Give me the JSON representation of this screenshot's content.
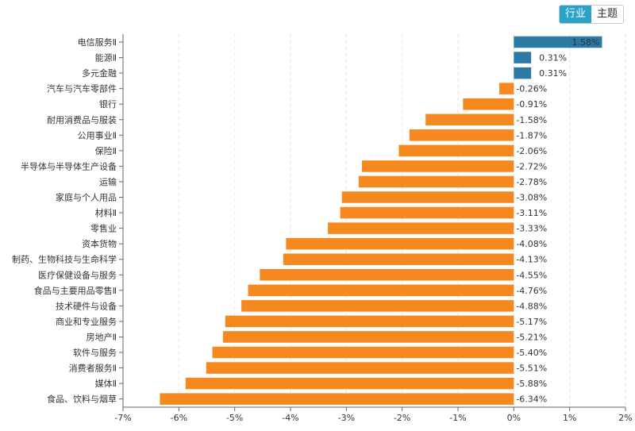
{
  "toggle": {
    "industry_label": "行业",
    "theme_label": "主题",
    "active": "industry"
  },
  "chart_data": {
    "type": "bar",
    "orientation": "horizontal",
    "categories": [
      "电信服务Ⅱ",
      "能源Ⅱ",
      "多元金融",
      "汽车与汽车零部件",
      "银行",
      "耐用消费品与服装",
      "公用事业Ⅱ",
      "保险Ⅱ",
      "半导体与半导体生产设备",
      "运输",
      "家庭与个人用品",
      "材料Ⅱ",
      "零售业",
      "资本货物",
      "制药、生物科技与生命科学",
      "医疗保健设备与服务",
      "食品与主要用品零售Ⅱ",
      "技术硬件与设备",
      "商业和专业服务",
      "房地产Ⅱ",
      "软件与服务",
      "消费者服务Ⅱ",
      "媒体Ⅱ",
      "食品、饮料与烟草"
    ],
    "values": [
      1.58,
      0.31,
      0.31,
      -0.26,
      -0.91,
      -1.58,
      -1.87,
      -2.06,
      -2.72,
      -2.78,
      -3.08,
      -3.11,
      -3.33,
      -4.08,
      -4.13,
      -4.55,
      -4.76,
      -4.88,
      -5.17,
      -5.21,
      -5.4,
      -5.51,
      -5.88,
      -6.34
    ],
    "value_labels": [
      "1.58%",
      "0.31%",
      "0.31%",
      "-0.26%",
      "-0.91%",
      "-1.58%",
      "-1.87%",
      "-2.06%",
      "-2.72%",
      "-2.78%",
      "-3.08%",
      "-3.11%",
      "-3.33%",
      "-4.08%",
      "-4.13%",
      "-4.55%",
      "-4.76%",
      "-4.88%",
      "-5.17%",
      "-5.21%",
      "-5.40%",
      "-5.51%",
      "-5.88%",
      "-6.34%"
    ],
    "xticks": [
      -7,
      -6,
      -5,
      -4,
      -3,
      -2,
      -1,
      0,
      1,
      2
    ],
    "xtick_labels": [
      "-7%",
      "-6%",
      "-5%",
      "-4%",
      "-3%",
      "-2%",
      "-1%",
      "0%",
      "1%",
      "2%"
    ],
    "xlim": [
      -7,
      2
    ],
    "grid": "vertical dashed",
    "colors": {
      "positive": "#2a7aa5",
      "negative": "#f5891f",
      "grid": "#e3e3e3",
      "axis": "#666666",
      "text": "#333333"
    }
  }
}
